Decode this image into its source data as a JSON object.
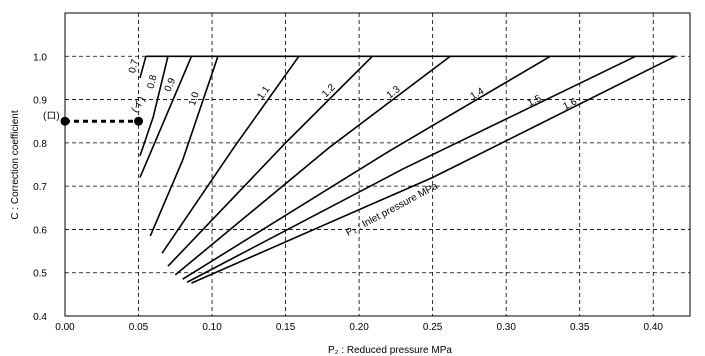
{
  "chart_data": {
    "type": "line",
    "xlabel": "P₂ : Reduced pressure   MPa",
    "ylabel": "C : Correction coefficient",
    "xlim": [
      0,
      0.425
    ],
    "ylim": [
      0.4,
      1.1
    ],
    "x_ticks": [
      "0.00",
      "0.05",
      "0.10",
      "0.15",
      "0.20",
      "0.25",
      "0.30",
      "0.35",
      "0.40"
    ],
    "y_ticks": [
      "0.4",
      "0.5",
      "0.6",
      "0.7",
      "0.8",
      "0.9",
      "1.0"
    ],
    "grid": true,
    "series_label": "P₁ : Inlet pressure  MPa",
    "series": [
      {
        "name": "0.7",
        "points": [
          [
            0.051,
            0.95
          ],
          [
            0.055,
            1.0
          ]
        ]
      },
      {
        "name": "0.8",
        "points": [
          [
            0.051,
            0.77
          ],
          [
            0.06,
            0.86
          ],
          [
            0.07,
            1.0
          ]
        ]
      },
      {
        "name": "0.9",
        "points": [
          [
            0.051,
            0.72
          ],
          [
            0.066,
            0.84
          ],
          [
            0.086,
            1.0
          ]
        ]
      },
      {
        "name": "1.0",
        "points": [
          [
            0.058,
            0.585
          ],
          [
            0.08,
            0.76
          ],
          [
            0.104,
            1.0
          ]
        ]
      },
      {
        "name": "1.1",
        "points": [
          [
            0.066,
            0.545
          ],
          [
            0.115,
            0.79
          ],
          [
            0.159,
            1.0
          ]
        ]
      },
      {
        "name": "1.2",
        "points": [
          [
            0.07,
            0.515
          ],
          [
            0.15,
            0.8
          ],
          [
            0.209,
            1.0
          ]
        ]
      },
      {
        "name": "1.3",
        "points": [
          [
            0.075,
            0.495
          ],
          [
            0.18,
            0.79
          ],
          [
            0.262,
            1.0
          ]
        ]
      },
      {
        "name": "1.4",
        "points": [
          [
            0.08,
            0.485
          ],
          [
            0.22,
            0.78
          ],
          [
            0.33,
            1.0
          ]
        ]
      },
      {
        "name": "1.5",
        "points": [
          [
            0.083,
            0.478
          ],
          [
            0.23,
            0.74
          ],
          [
            0.388,
            1.0
          ]
        ]
      },
      {
        "name": "1.6",
        "points": [
          [
            0.086,
            0.476
          ],
          [
            0.25,
            0.72
          ],
          [
            0.415,
            1.0
          ]
        ]
      }
    ],
    "annotations": [
      {
        "label": "(イ)",
        "x": 0.05,
        "y": 0.85
      },
      {
        "label": "(ロ)",
        "x": 0.0,
        "y": 0.85
      }
    ]
  }
}
